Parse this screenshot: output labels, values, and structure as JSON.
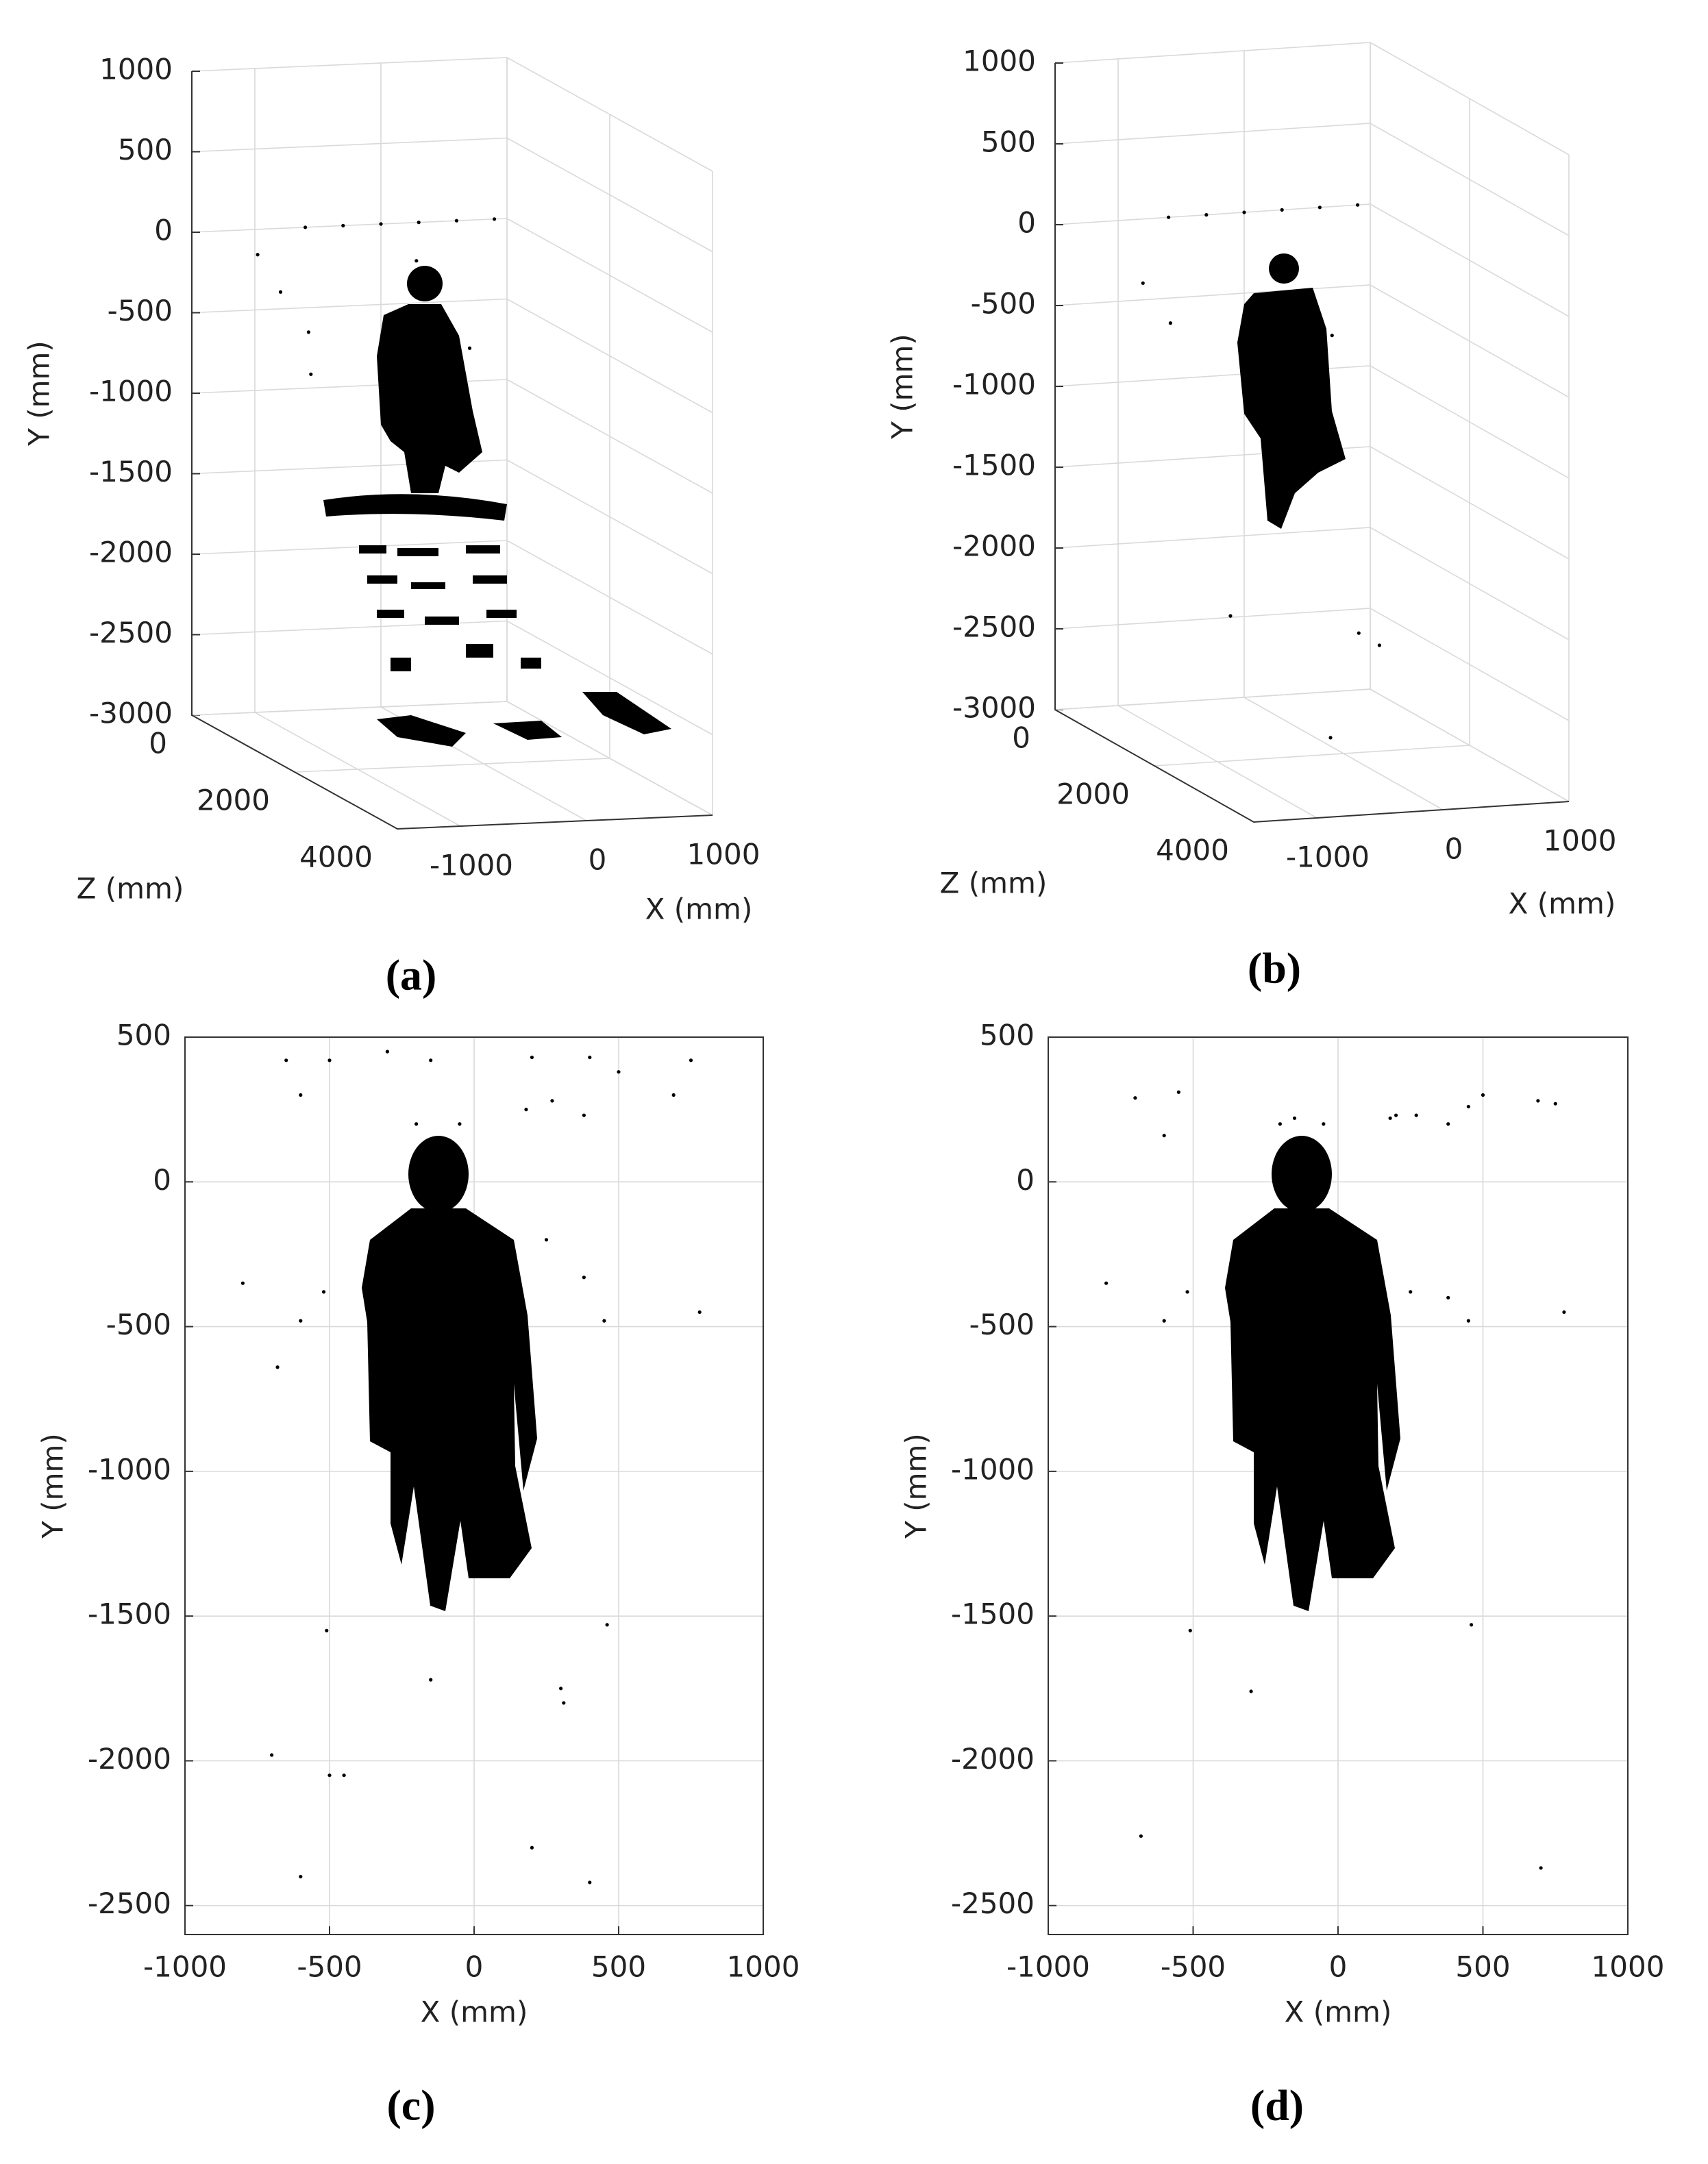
{
  "chart_data": [
    {
      "type": "scatter3d",
      "caption": "(a)",
      "xlabel": "X (mm)",
      "ylabel": "Y (mm)",
      "zlabel": "Z (mm)",
      "xlim": [
        -1500,
        1000
      ],
      "ylim": [
        -3000,
        1000
      ],
      "zlim": [
        0,
        4000
      ],
      "xticks": [
        -1000,
        0,
        1000
      ],
      "yticks": [
        -3000,
        -2500,
        -2000,
        -1500,
        -1000,
        -500,
        0,
        500,
        1000
      ],
      "zticks": [
        0,
        2000,
        4000
      ],
      "grid": true,
      "color": "#000000",
      "x": [
        -600,
        -300,
        0,
        300,
        600,
        900,
        -1000,
        -900,
        -800,
        400,
        500,
        -1100,
        200
      ],
      "y": [
        0,
        0,
        0,
        0,
        0,
        0,
        -300,
        -500,
        -800,
        -600,
        -700,
        -100,
        -200
      ],
      "z": [
        0,
        0,
        0,
        0,
        0,
        0,
        500,
        800,
        600,
        300,
        500,
        300,
        200
      ]
    },
    {
      "type": "scatter3d",
      "caption": "(b)",
      "xlabel": "X (mm)",
      "ylabel": "Y (mm)",
      "zlabel": "Z (mm)",
      "xlim": [
        -1500,
        1000
      ],
      "ylim": [
        -3000,
        1000
      ],
      "zlim": [
        0,
        4000
      ],
      "xticks": [
        -1000,
        0,
        1000
      ],
      "yticks": [
        -3000,
        -2500,
        -2000,
        -1500,
        -1000,
        -500,
        0,
        500,
        1000
      ],
      "zticks": [
        0,
        2000,
        4000
      ],
      "grid": true,
      "color": "#000000",
      "x": [
        -600,
        -300,
        0,
        300,
        600,
        900,
        -1000,
        -900,
        400,
        500,
        -700,
        200,
        600,
        -300
      ],
      "y": [
        0,
        0,
        0,
        0,
        0,
        0,
        -300,
        -500,
        -600,
        -700,
        -2200,
        -2300,
        -2500,
        -2800
      ],
      "z": [
        0,
        0,
        0,
        0,
        0,
        0,
        500,
        800,
        300,
        500,
        1500,
        1800,
        1200,
        2500
      ]
    },
    {
      "type": "scatter",
      "caption": "(c)",
      "xlabel": "X (mm)",
      "ylabel": "Y (mm)",
      "xlim": [
        -1000,
        1000
      ],
      "ylim": [
        -2600,
        500
      ],
      "xticks": [
        -1000,
        -500,
        0,
        500,
        1000
      ],
      "yticks": [
        -2500,
        -2000,
        -1500,
        -1000,
        -500,
        0,
        500
      ],
      "grid": true,
      "color": "#000000",
      "x": [
        -650,
        -500,
        -300,
        -150,
        200,
        400,
        750,
        -600,
        500,
        -200,
        -50,
        180,
        270,
        380,
        690,
        -680,
        -520,
        -600,
        250,
        380,
        450,
        780,
        -800,
        300,
        310,
        -500,
        -450,
        -700,
        -600,
        400,
        -510,
        460,
        -150,
        200
      ],
      "y": [
        420,
        420,
        450,
        420,
        430,
        430,
        420,
        300,
        380,
        200,
        200,
        250,
        280,
        230,
        300,
        -640,
        -380,
        -480,
        -200,
        -330,
        -480,
        -450,
        -350,
        -1750,
        -1800,
        -2050,
        -2050,
        -1980,
        -2400,
        -2420,
        -1550,
        -1530,
        -1720,
        -2300
      ]
    },
    {
      "type": "scatter",
      "caption": "(d)",
      "xlabel": "X (mm)",
      "ylabel": "Y (mm)",
      "xlim": [
        -1000,
        1000
      ],
      "ylim": [
        -2600,
        500
      ],
      "xticks": [
        -1000,
        -500,
        0,
        500,
        1000
      ],
      "yticks": [
        -2500,
        -2000,
        -1500,
        -1000,
        -500,
        0,
        500
      ],
      "grid": true,
      "color": "#000000",
      "x": [
        -700,
        -550,
        -150,
        200,
        450,
        750,
        -600,
        500,
        -200,
        -50,
        180,
        270,
        380,
        690,
        -520,
        -600,
        250,
        380,
        450,
        780,
        -800,
        -510,
        460,
        -300,
        -680,
        700
      ],
      "y": [
        290,
        310,
        220,
        230,
        260,
        270,
        160,
        300,
        200,
        200,
        220,
        230,
        200,
        280,
        -380,
        -480,
        -380,
        -400,
        -480,
        -450,
        -350,
        -1550,
        -1530,
        -1760,
        -2260,
        -2370
      ]
    }
  ]
}
